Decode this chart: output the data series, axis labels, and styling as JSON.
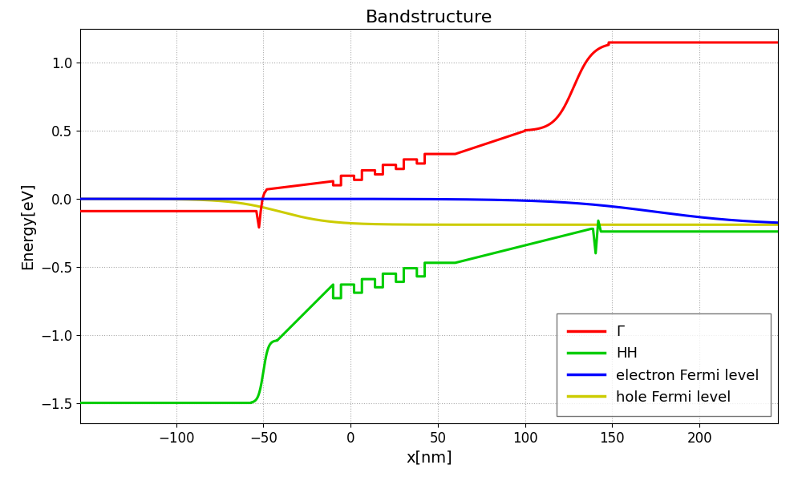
{
  "title": "Bandstructure",
  "xlabel": "x[nm]",
  "ylabel": "Energy[eV]",
  "xlim": [
    -155,
    245
  ],
  "ylim": [
    -1.65,
    1.25
  ],
  "xticks": [
    -100,
    -50,
    0,
    50,
    100,
    150,
    200
  ],
  "yticks": [
    -1.5,
    -1.0,
    -0.5,
    0.0,
    0.5,
    1.0
  ],
  "grid_color": "#aaaaaa",
  "bg_color": "#ffffff",
  "line_width": 2.2,
  "legend_labels": [
    "Γ",
    "HH",
    "electron Fermi level",
    "hole Fermi level"
  ],
  "legend_colors": [
    "#ff0000",
    "#00cc00",
    "#0000ff",
    "#cccc00"
  ],
  "title_fontsize": 16,
  "label_fontsize": 14,
  "tick_fontsize": 12,
  "legend_fontsize": 13,
  "figsize": [
    10.0,
    6.0
  ],
  "dpi": 100
}
